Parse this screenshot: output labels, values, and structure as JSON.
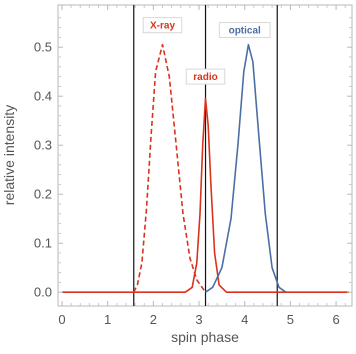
{
  "chart_data": {
    "type": "line",
    "xlabel": "spin phase",
    "ylabel": "relative intensity",
    "xlim": [
      0,
      6.283
    ],
    "ylim": [
      -0.02,
      0.58
    ],
    "x_ticks": [
      0,
      1,
      2,
      3,
      4,
      5,
      6
    ],
    "y_ticks": [
      0.0,
      0.1,
      0.2,
      0.3,
      0.4,
      0.5
    ],
    "x_tick_labels": [
      "0",
      "1",
      "2",
      "3",
      "4",
      "5",
      "6"
    ],
    "y_tick_labels": [
      "0.0",
      "0.1",
      "0.2",
      "0.3",
      "0.4",
      "0.5"
    ],
    "vertical_lines": [
      1.571,
      3.142,
      4.712
    ],
    "series": [
      {
        "name": "X-ray",
        "color": "#d9331c",
        "style": "dashed",
        "points": [
          [
            1.57,
            0.0
          ],
          [
            1.65,
            0.015
          ],
          [
            1.75,
            0.06
          ],
          [
            1.85,
            0.17
          ],
          [
            1.95,
            0.32
          ],
          [
            2.05,
            0.45
          ],
          [
            2.2,
            0.505
          ],
          [
            2.35,
            0.44
          ],
          [
            2.5,
            0.3
          ],
          [
            2.65,
            0.16
          ],
          [
            2.8,
            0.07
          ],
          [
            2.95,
            0.025
          ],
          [
            3.142,
            0.0
          ]
        ]
      },
      {
        "name": "radio",
        "color": "#d9331c",
        "style": "solid",
        "points": [
          [
            0.0,
            0.0
          ],
          [
            2.7,
            0.0
          ],
          [
            2.85,
            0.01
          ],
          [
            2.95,
            0.06
          ],
          [
            3.02,
            0.16
          ],
          [
            3.08,
            0.3
          ],
          [
            3.142,
            0.395
          ],
          [
            3.2,
            0.34
          ],
          [
            3.26,
            0.22
          ],
          [
            3.34,
            0.08
          ],
          [
            3.44,
            0.015
          ],
          [
            3.6,
            0.0
          ],
          [
            6.28,
            0.0
          ]
        ]
      },
      {
        "name": "optical",
        "color": "#4a6fa5",
        "style": "solid",
        "points": [
          [
            3.142,
            0.0
          ],
          [
            3.3,
            0.01
          ],
          [
            3.5,
            0.05
          ],
          [
            3.7,
            0.15
          ],
          [
            3.85,
            0.3
          ],
          [
            3.98,
            0.45
          ],
          [
            4.08,
            0.505
          ],
          [
            4.18,
            0.47
          ],
          [
            4.3,
            0.33
          ],
          [
            4.45,
            0.16
          ],
          [
            4.6,
            0.05
          ],
          [
            4.75,
            0.01
          ],
          [
            4.9,
            0.0
          ]
        ]
      }
    ],
    "annotations": [
      {
        "text": "X-ray",
        "x": 2.2,
        "y": 0.545,
        "color": "#d9331c"
      },
      {
        "text": "radio",
        "x": 3.142,
        "y": 0.44,
        "color": "#d9331c"
      },
      {
        "text": "optical",
        "x": 4.0,
        "y": 0.535,
        "color": "#4a6fa5"
      }
    ]
  }
}
